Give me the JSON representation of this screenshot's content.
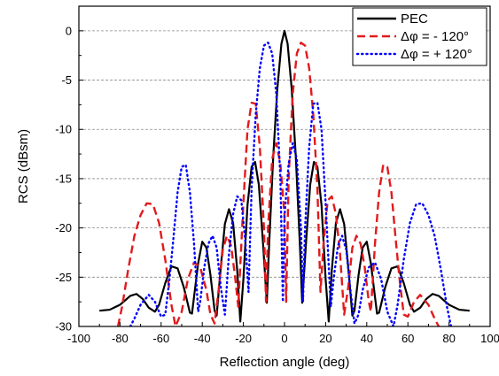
{
  "chart_data": {
    "type": "line",
    "xlabel": "Reflection angle (deg)",
    "ylabel": "RCS (dBsm)",
    "xlim": [
      -100,
      100
    ],
    "ylim": [
      -30,
      2.5
    ],
    "x_ticks": [
      -100,
      -80,
      -60,
      -40,
      -20,
      0,
      20,
      40,
      60,
      80,
      100
    ],
    "x_tick_labels": [
      "-100",
      "-80",
      "-60",
      "-40",
      "-20",
      "0",
      "20",
      "40",
      "60",
      "80",
      "100"
    ],
    "y_ticks": [
      0,
      -5,
      -10,
      -15,
      -20,
      -25,
      -30
    ],
    "y_tick_labels": [
      "0",
      "-5",
      "-10",
      "-15",
      "-20",
      "-25",
      "-30"
    ],
    "grid": "horizontal dashed",
    "legend_position": "top-right",
    "series": [
      {
        "name": "PEC",
        "color": "#000000",
        "dash": "solid",
        "points": [
          [
            -90,
            -28.4
          ],
          [
            -85,
            -28.3
          ],
          [
            -80,
            -27.8
          ],
          [
            -75,
            -26.9
          ],
          [
            -72,
            -26.7
          ],
          [
            -69,
            -27.2
          ],
          [
            -66,
            -28.1
          ],
          [
            -63,
            -28.5
          ],
          [
            -61,
            -27.8
          ],
          [
            -58,
            -25.6
          ],
          [
            -55,
            -23.9
          ],
          [
            -52,
            -24.1
          ],
          [
            -49,
            -26.0
          ],
          [
            -46,
            -28.6
          ],
          [
            -45,
            -28.7
          ],
          [
            -44,
            -27.0
          ],
          [
            -42,
            -23.6
          ],
          [
            -40,
            -21.4
          ],
          [
            -38,
            -22.0
          ],
          [
            -36,
            -24.8
          ],
          [
            -34,
            -28.4
          ],
          [
            -33,
            -28.9
          ],
          [
            -31,
            -24.0
          ],
          [
            -29,
            -19.6
          ],
          [
            -27,
            -18.1
          ],
          [
            -25,
            -19.5
          ],
          [
            -23,
            -24.3
          ],
          [
            -21.5,
            -29.5
          ],
          [
            -20,
            -25.2
          ],
          [
            -18,
            -17.7
          ],
          [
            -16,
            -13.8
          ],
          [
            -14.3,
            -13.3
          ],
          [
            -12.5,
            -15.6
          ],
          [
            -10.5,
            -21.4
          ],
          [
            -8.6,
            -27.6
          ],
          [
            -7.5,
            -21.8
          ],
          [
            -5.5,
            -12.8
          ],
          [
            -3.5,
            -5.9
          ],
          [
            -1.5,
            -1.3
          ],
          [
            0,
            0
          ],
          [
            1.5,
            -1.3
          ],
          [
            3.5,
            -5.9
          ],
          [
            5.5,
            -12.8
          ],
          [
            7.5,
            -21.8
          ],
          [
            8.6,
            -27.6
          ],
          [
            10.5,
            -21.4
          ],
          [
            12.5,
            -15.6
          ],
          [
            14.3,
            -13.3
          ],
          [
            16,
            -13.8
          ],
          [
            18,
            -17.7
          ],
          [
            20,
            -25.2
          ],
          [
            21.5,
            -29.5
          ],
          [
            23,
            -24.3
          ],
          [
            25,
            -19.5
          ],
          [
            27,
            -18.1
          ],
          [
            29,
            -19.6
          ],
          [
            31,
            -24.0
          ],
          [
            33,
            -28.9
          ],
          [
            34,
            -28.4
          ],
          [
            36,
            -24.8
          ],
          [
            38,
            -22.0
          ],
          [
            40,
            -21.4
          ],
          [
            42,
            -23.6
          ],
          [
            44,
            -27.0
          ],
          [
            45,
            -28.7
          ],
          [
            46,
            -28.6
          ],
          [
            49,
            -26.0
          ],
          [
            52,
            -24.1
          ],
          [
            55,
            -23.9
          ],
          [
            58,
            -25.6
          ],
          [
            61,
            -27.8
          ],
          [
            63,
            -28.5
          ],
          [
            66,
            -28.1
          ],
          [
            69,
            -27.2
          ],
          [
            72,
            -26.7
          ],
          [
            75,
            -26.9
          ],
          [
            80,
            -27.8
          ],
          [
            85,
            -28.3
          ],
          [
            90,
            -28.4
          ]
        ]
      },
      {
        "name": "Δφ = - 120°",
        "color": "#e31a1c",
        "dash": "dashed",
        "points": [
          [
            -81,
            -30.0
          ],
          [
            -79,
            -28.0
          ],
          [
            -76,
            -24.2
          ],
          [
            -73,
            -20.8
          ],
          [
            -70,
            -18.7
          ],
          [
            -67,
            -17.5
          ],
          [
            -64,
            -17.6
          ],
          [
            -61,
            -19.5
          ],
          [
            -58,
            -23.2
          ],
          [
            -55,
            -27.8
          ],
          [
            -53,
            -30.0
          ],
          [
            -50,
            -28.5
          ],
          [
            -47,
            -25.2
          ],
          [
            -44,
            -23.5
          ],
          [
            -41,
            -24.0
          ],
          [
            -38,
            -26.3
          ],
          [
            -36,
            -28.8
          ],
          [
            -34,
            -29.7
          ],
          [
            -32,
            -26.2
          ],
          [
            -30,
            -22.2
          ],
          [
            -28,
            -20.8
          ],
          [
            -26,
            -21.8
          ],
          [
            -24,
            -25.0
          ],
          [
            -22.5,
            -28.0
          ],
          [
            -20,
            -17.5
          ],
          [
            -18,
            -10.0
          ],
          [
            -16,
            -7.3
          ],
          [
            -14,
            -7.4
          ],
          [
            -12,
            -11.8
          ],
          [
            -10,
            -20.0
          ],
          [
            -9,
            -27.5
          ],
          [
            -8,
            -20.0
          ],
          [
            -6,
            -13.0
          ],
          [
            -4,
            -11.4
          ],
          [
            -2,
            -13.5
          ],
          [
            0,
            -18.8
          ],
          [
            0.8,
            -27.5
          ],
          [
            2,
            -15.0
          ],
          [
            4,
            -6.4
          ],
          [
            6,
            -2.3
          ],
          [
            8,
            -1.2
          ],
          [
            10,
            -1.5
          ],
          [
            12,
            -3.8
          ],
          [
            14,
            -8.5
          ],
          [
            16,
            -16.0
          ],
          [
            17.5,
            -26.5
          ],
          [
            19,
            -21.5
          ],
          [
            21,
            -17.2
          ],
          [
            23,
            -16.8
          ],
          [
            25,
            -18.6
          ],
          [
            27,
            -22.6
          ],
          [
            29,
            -28.8
          ],
          [
            31,
            -26.0
          ],
          [
            33,
            -22.0
          ],
          [
            35,
            -20.8
          ],
          [
            37,
            -21.6
          ],
          [
            39,
            -24.0
          ],
          [
            41,
            -27.5
          ],
          [
            42,
            -28.5
          ],
          [
            44,
            -21.6
          ],
          [
            46,
            -16.4
          ],
          [
            48,
            -13.6
          ],
          [
            50,
            -13.8
          ],
          [
            52,
            -16.4
          ],
          [
            54,
            -21.0
          ],
          [
            56,
            -25.3
          ],
          [
            58,
            -28.8
          ],
          [
            60,
            -29.0
          ],
          [
            63,
            -27.5
          ],
          [
            66,
            -26.8
          ],
          [
            70,
            -27.8
          ],
          [
            73,
            -29.2
          ],
          [
            75,
            -30.0
          ]
        ]
      },
      {
        "name": "Δφ = + 120°",
        "color": "#0000ff",
        "dash": "dotted",
        "points": [
          [
            -75,
            -30.0
          ],
          [
            -73,
            -29.2
          ],
          [
            -70,
            -27.8
          ],
          [
            -66,
            -26.8
          ],
          [
            -63,
            -27.5
          ],
          [
            -60,
            -29.0
          ],
          [
            -58,
            -28.8
          ],
          [
            -56,
            -25.3
          ],
          [
            -54,
            -21.0
          ],
          [
            -52,
            -16.4
          ],
          [
            -50,
            -13.8
          ],
          [
            -48,
            -13.6
          ],
          [
            -46,
            -16.4
          ],
          [
            -44,
            -21.6
          ],
          [
            -42,
            -28.5
          ],
          [
            -41,
            -27.5
          ],
          [
            -39,
            -24.0
          ],
          [
            -37,
            -21.6
          ],
          [
            -35,
            -20.8
          ],
          [
            -33,
            -22.0
          ],
          [
            -31,
            -26.0
          ],
          [
            -29,
            -28.8
          ],
          [
            -27,
            -22.6
          ],
          [
            -25,
            -18.6
          ],
          [
            -23,
            -16.8
          ],
          [
            -21,
            -17.2
          ],
          [
            -19,
            -21.5
          ],
          [
            -17.5,
            -26.5
          ],
          [
            -16,
            -16.0
          ],
          [
            -14,
            -8.5
          ],
          [
            -12,
            -3.8
          ],
          [
            -10,
            -1.5
          ],
          [
            -8,
            -1.2
          ],
          [
            -6,
            -2.3
          ],
          [
            -4,
            -6.4
          ],
          [
            -2,
            -15.0
          ],
          [
            -0.8,
            -27.5
          ],
          [
            0,
            -18.8
          ],
          [
            2,
            -13.5
          ],
          [
            4,
            -11.4
          ],
          [
            6,
            -13.0
          ],
          [
            8,
            -20.0
          ],
          [
            9,
            -27.5
          ],
          [
            10,
            -20.0
          ],
          [
            12,
            -11.8
          ],
          [
            14,
            -7.4
          ],
          [
            16,
            -7.3
          ],
          [
            18,
            -10.0
          ],
          [
            20,
            -17.5
          ],
          [
            22.5,
            -28.0
          ],
          [
            24,
            -25.0
          ],
          [
            26,
            -21.8
          ],
          [
            28,
            -20.8
          ],
          [
            30,
            -22.2
          ],
          [
            32,
            -26.2
          ],
          [
            34,
            -29.7
          ],
          [
            36,
            -28.8
          ],
          [
            38,
            -26.3
          ],
          [
            41,
            -24.0
          ],
          [
            44,
            -23.5
          ],
          [
            47,
            -25.2
          ],
          [
            50,
            -28.5
          ],
          [
            53,
            -30.0
          ],
          [
            55,
            -27.8
          ],
          [
            58,
            -23.2
          ],
          [
            61,
            -19.5
          ],
          [
            64,
            -17.6
          ],
          [
            67,
            -17.5
          ],
          [
            70,
            -18.7
          ],
          [
            73,
            -20.8
          ],
          [
            76,
            -24.2
          ],
          [
            79,
            -28.0
          ],
          [
            81,
            -30.0
          ]
        ]
      }
    ]
  }
}
